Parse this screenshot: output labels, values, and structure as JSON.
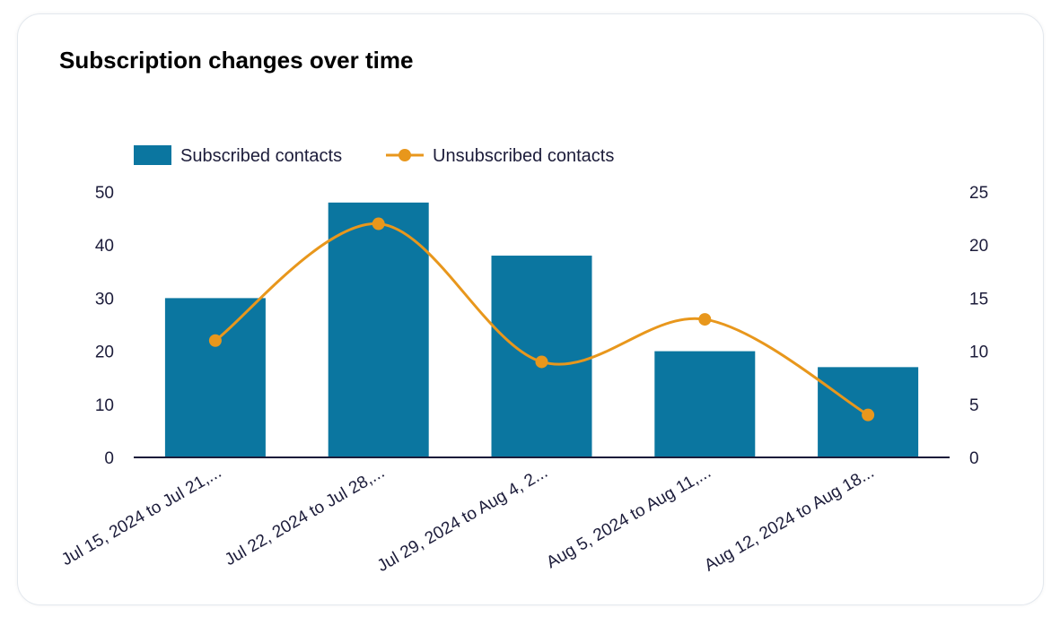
{
  "chart_data": {
    "type": "bar+line",
    "title": "Subscription changes over time",
    "categories": [
      "Jul 15, 2024 to Jul 21,...",
      "Jul 22, 2024 to Jul 28,...",
      "Jul 29, 2024 to Aug 4, 2...",
      "Aug 5, 2024 to Aug 11,...",
      "Aug 12, 2024 to Aug 18..."
    ],
    "series": [
      {
        "name": "Subscribed contacts",
        "type": "bar",
        "axis": "left",
        "color": "#0b76a0",
        "values": [
          30,
          48,
          38,
          20,
          17
        ]
      },
      {
        "name": "Unsubscribed contacts",
        "type": "line",
        "axis": "right",
        "color": "#e8971c",
        "values": [
          11,
          22,
          9,
          13,
          4
        ]
      }
    ],
    "y_left": {
      "range": [
        0,
        50
      ],
      "ticks": [
        0,
        10,
        20,
        30,
        40,
        50
      ]
    },
    "y_right": {
      "range": [
        0,
        25
      ],
      "ticks": [
        0,
        5,
        10,
        15,
        20,
        25
      ]
    },
    "legend": "top-left",
    "grid": false
  }
}
